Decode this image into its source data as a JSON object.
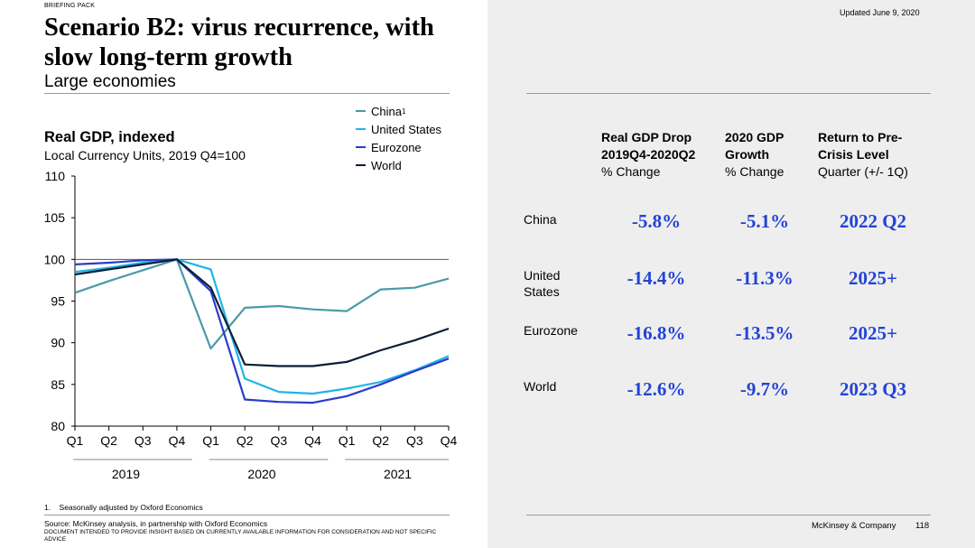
{
  "header": {
    "tag": "BRIEFING PACK",
    "title": "Scenario B2: virus recurrence, with slow long-term growth",
    "subtitle": "Large economies",
    "updated": "Updated June 9, 2020"
  },
  "colors": {
    "China": "#4a9aa8",
    "United States": "#1fb4e8",
    "Eurozone": "#2b3cc9",
    "World": "#0a1e36",
    "accent_value": "#2243d6"
  },
  "chart_data": {
    "type": "line",
    "title": "Real GDP, indexed",
    "subtitle": "Local Currency Units, 2019 Q4=100",
    "x": [
      "Q1",
      "Q2",
      "Q3",
      "Q4",
      "Q1",
      "Q2",
      "Q3",
      "Q4",
      "Q1",
      "Q2",
      "Q3",
      "Q4"
    ],
    "year_groups": [
      {
        "label": "2019",
        "quarters": 4
      },
      {
        "label": "2020",
        "quarters": 4
      },
      {
        "label": "2021",
        "quarters": 4
      }
    ],
    "ylim": [
      80,
      110
    ],
    "yticks": [
      80,
      85,
      90,
      95,
      100,
      105,
      110
    ],
    "reference_line": 100,
    "legend_position": "top-right",
    "series": [
      {
        "name": "China",
        "footnote": "1",
        "values": [
          96.0,
          97.4,
          98.7,
          100.0,
          89.3,
          94.2,
          94.4,
          94.0,
          93.8,
          96.4,
          96.6,
          97.7
        ]
      },
      {
        "name": "United States",
        "values": [
          98.5,
          99.0,
          99.6,
          100.0,
          98.8,
          85.7,
          84.1,
          83.9,
          84.5,
          85.3,
          86.7,
          88.4
        ]
      },
      {
        "name": "Eurozone",
        "values": [
          99.4,
          99.6,
          99.9,
          100.0,
          96.2,
          83.2,
          82.9,
          82.8,
          83.6,
          85.0,
          86.6,
          88.1
        ]
      },
      {
        "name": "World",
        "values": [
          98.2,
          98.8,
          99.4,
          100.0,
          96.6,
          87.4,
          87.2,
          87.2,
          87.7,
          89.1,
          90.3,
          91.7
        ]
      }
    ]
  },
  "table": {
    "headers": [
      {
        "bold_lines": [
          "Real GDP Drop",
          "2019Q4-2020Q2"
        ],
        "plain": "% Change"
      },
      {
        "bold_lines": [
          "2020 GDP",
          "Growth"
        ],
        "plain": "% Change"
      },
      {
        "bold_lines": [
          "Return to Pre-",
          "Crisis Level"
        ],
        "plain": "Quarter (+/- 1Q)"
      }
    ],
    "rows": [
      {
        "label_lines": [
          "China"
        ],
        "drop": "-5.8%",
        "growth": "-5.1%",
        "return": "2022 Q2"
      },
      {
        "label_lines": [
          "United",
          "States"
        ],
        "drop": "-14.4%",
        "growth": "-11.3%",
        "return": "2025+"
      },
      {
        "label_lines": [
          "Eurozone"
        ],
        "drop": "-16.8%",
        "growth": "-13.5%",
        "return": "2025+"
      },
      {
        "label_lines": [
          "World"
        ],
        "drop": "-12.6%",
        "growth": "-9.7%",
        "return": "2023 Q3"
      }
    ]
  },
  "footer": {
    "footnote": "1.    Seasonally adjusted by Oxford Economics",
    "source": "Source: McKinsey analysis, in partnership with Oxford Economics",
    "disclaimer": "DOCUMENT INTENDED TO PROVIDE INSIGHT BASED ON CURRENTLY AVAILABLE INFORMATION FOR CONSIDERATION AND NOT SPECIFIC ADVICE",
    "company": "McKinsey & Company",
    "page_number": "118"
  }
}
